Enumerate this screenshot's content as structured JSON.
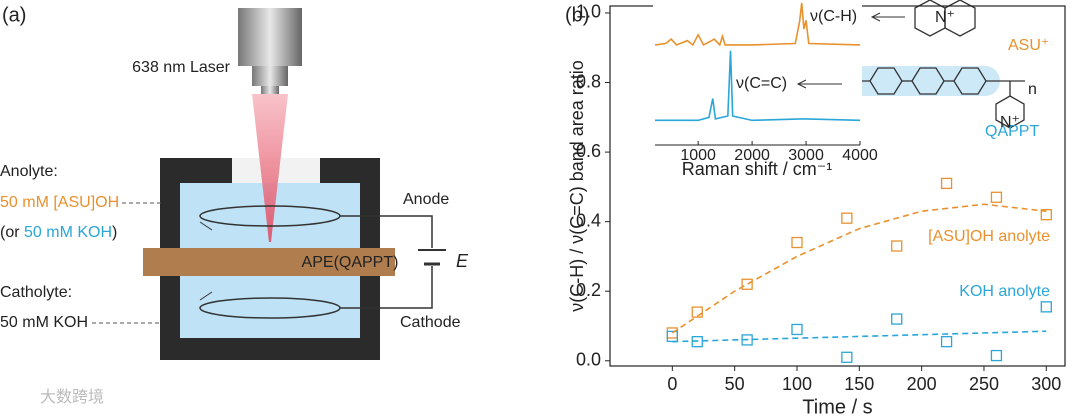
{
  "panel_a": {
    "label": "(a)",
    "laser": "638 nm Laser",
    "anolyte_title": "Anolyte:",
    "anolyte_main": "50 mM [ASU]OH",
    "anolyte_alt_open": "(or ",
    "anolyte_alt": "50 mM KOH",
    "anolyte_alt_close": ")",
    "catholyte_title": "Catholyte:",
    "catholyte": "50 mM KOH",
    "anode": "Anode",
    "cathode": "Cathode",
    "membrane": "APE(QAPPT)",
    "voltage": "E"
  },
  "watermark": "大数跨境",
  "chart_data": {
    "type": "scatter",
    "label": "(b)",
    "xlabel": "Time / s",
    "ylabel": "ν(C-H) / ν(C=C) band area ratio",
    "xlim": [
      -50,
      315
    ],
    "ylim": [
      -0.015,
      1.02
    ],
    "xticks": [
      0,
      50,
      100,
      150,
      200,
      250,
      300
    ],
    "yticks": [
      {
        "value": 0,
        "label": "0.0"
      },
      {
        "value": 0.2,
        "label": "0.2"
      },
      {
        "value": 0.4,
        "label": "0.4"
      },
      {
        "value": 0.6,
        "label": "0.6"
      },
      {
        "value": 0.8,
        "label": "0.8"
      },
      {
        "value": 1.0,
        "label": "1.0"
      }
    ],
    "series": [
      {
        "name": "[ASU]OH anolyte",
        "color": "#e8912e",
        "marker": "square",
        "x": [
          0,
          20,
          60,
          100,
          140,
          180,
          220,
          260,
          300
        ],
        "values": [
          0.08,
          0.14,
          0.22,
          0.34,
          0.41,
          0.33,
          0.51,
          0.47,
          0.42
        ]
      },
      {
        "name": "KOH anolyte",
        "color": "#2aa6d9",
        "marker": "square",
        "x": [
          0,
          20,
          60,
          100,
          140,
          180,
          220,
          260,
          300
        ],
        "values": [
          0.07,
          0.055,
          0.06,
          0.09,
          0.01,
          0.12,
          0.055,
          0.015,
          0.155
        ]
      },
      {
        "color": "#e8912e",
        "style": "dashed",
        "x": [
          0,
          50,
          100,
          150,
          200,
          250,
          300
        ],
        "values": [
          0.08,
          0.2,
          0.3,
          0.38,
          0.43,
          0.45,
          0.43
        ]
      },
      {
        "color": "#2aa6d9",
        "style": "dashed",
        "x": [
          0,
          300
        ],
        "values": [
          0.055,
          0.085
        ]
      }
    ],
    "inset": {
      "type": "line",
      "xlabel": "Raman shift / cm⁻¹",
      "xlim": [
        200,
        4000
      ],
      "ylim": [
        0,
        1
      ],
      "xticks": [
        1000,
        2000,
        3000,
        4000
      ],
      "series": [
        {
          "name": "ASU⁺",
          "color": "#e8912e",
          "peak_label": "ν(C-H)",
          "x": [
            200,
            400,
            500,
            600,
            800,
            900,
            1000,
            1100,
            1300,
            1400,
            1450,
            1500,
            2000,
            2800,
            2880,
            2920,
            2960,
            3000,
            3050,
            4000
          ],
          "values": [
            0.69,
            0.7,
            0.73,
            0.69,
            0.72,
            0.69,
            0.76,
            0.69,
            0.73,
            0.69,
            0.75,
            0.69,
            0.69,
            0.7,
            0.85,
            0.98,
            0.8,
            0.86,
            0.7,
            0.69
          ]
        },
        {
          "name": "QAPPT",
          "color": "#2aa6d9",
          "peak_label": "ν(C=C)",
          "x": [
            200,
            1000,
            1200,
            1270,
            1320,
            1550,
            1600,
            1640,
            2000,
            2900,
            3000,
            4000
          ],
          "values": [
            0.17,
            0.17,
            0.19,
            0.32,
            0.18,
            0.2,
            0.65,
            0.2,
            0.17,
            0.18,
            0.18,
            0.17
          ]
        }
      ],
      "structures": {
        "asu_atom": "N⁺",
        "qappt_atom": "N⁺",
        "repeat": "n"
      }
    }
  }
}
